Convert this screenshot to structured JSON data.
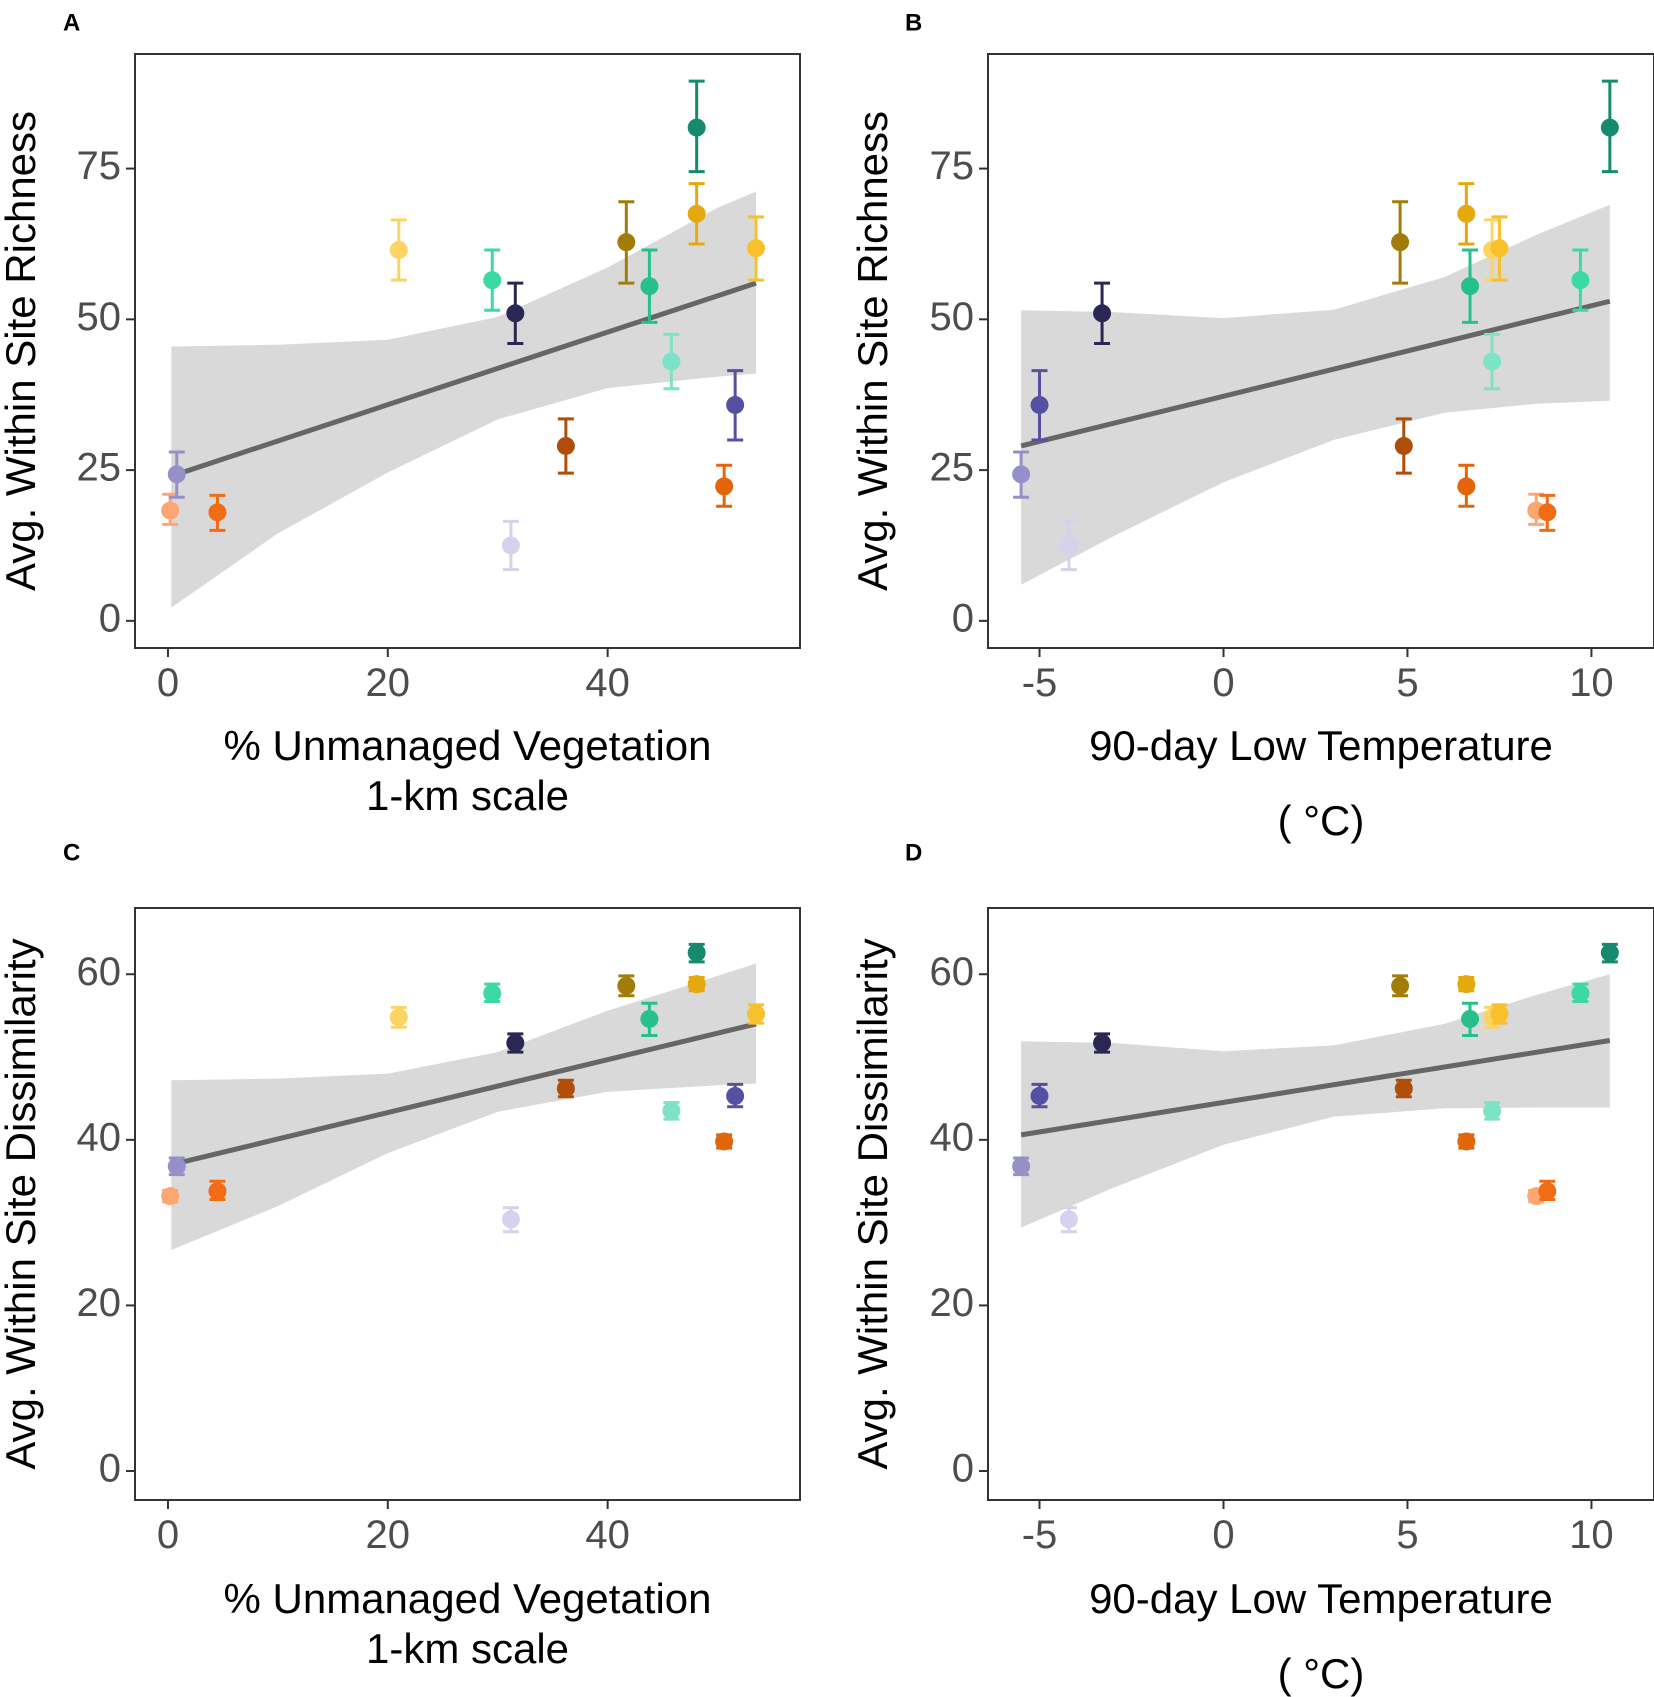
{
  "chart_data": [
    {
      "panel": "A",
      "type": "scatter",
      "xlabel_lines": [
        "% Unmanaged Vegetation",
        "1-km scale"
      ],
      "ylabel": "Avg. Within Site Richness",
      "xlim": [
        -3,
        57.5
      ],
      "ylim": [
        -4.5,
        94
      ],
      "xticks": [
        0,
        20,
        40
      ],
      "xtick_labels": [
        "0",
        "20",
        "40"
      ],
      "yticks": [
        0,
        25,
        50,
        75
      ],
      "ytick_labels": [
        "0",
        "25",
        "50",
        "75"
      ],
      "fit": {
        "x": [
          0.3,
          53.5
        ],
        "y": [
          24.0,
          56.0
        ]
      },
      "band": {
        "x": [
          0.3,
          10,
          20,
          30,
          40,
          50,
          53.5
        ],
        "upper": [
          45.5,
          45.8,
          46.6,
          50.4,
          58.6,
          68.5,
          71.2
        ],
        "lower": [
          2.2,
          14.5,
          24.6,
          33.4,
          38.6,
          40.5,
          41.0
        ]
      },
      "points": [
        {
          "x": 0.2,
          "y": 18.3,
          "lo": 16.0,
          "hi": 21.0,
          "color": "#fca771"
        },
        {
          "x": 0.8,
          "y": 24.3,
          "lo": 20.5,
          "hi": 28.0,
          "color": "#9590c8"
        },
        {
          "x": 4.5,
          "y": 18.0,
          "lo": 15.0,
          "hi": 20.8,
          "color": "#f26b15"
        },
        {
          "x": 21.0,
          "y": 61.5,
          "lo": 56.5,
          "hi": 66.5,
          "color": "#fdd463"
        },
        {
          "x": 29.5,
          "y": 56.5,
          "lo": 51.5,
          "hi": 61.5,
          "color": "#3dd9a3"
        },
        {
          "x": 31.2,
          "y": 12.5,
          "lo": 8.5,
          "hi": 16.5,
          "color": "#d4d2ec"
        },
        {
          "x": 31.6,
          "y": 51.0,
          "lo": 46.0,
          "hi": 56.0,
          "color": "#2a2752"
        },
        {
          "x": 36.2,
          "y": 29.0,
          "lo": 24.5,
          "hi": 33.5,
          "color": "#b04e09"
        },
        {
          "x": 41.7,
          "y": 62.8,
          "lo": 56.0,
          "hi": 69.5,
          "color": "#a27c08"
        },
        {
          "x": 43.8,
          "y": 55.5,
          "lo": 49.5,
          "hi": 61.5,
          "color": "#27c08b"
        },
        {
          "x": 45.8,
          "y": 43.0,
          "lo": 38.5,
          "hi": 47.5,
          "color": "#7de3c6"
        },
        {
          "x": 48.1,
          "y": 81.8,
          "lo": 74.5,
          "hi": 89.5,
          "color": "#168a6c"
        },
        {
          "x": 48.1,
          "y": 67.5,
          "lo": 62.5,
          "hi": 72.5,
          "color": "#e5a90d"
        },
        {
          "x": 50.6,
          "y": 22.3,
          "lo": 19.0,
          "hi": 25.8,
          "color": "#e2650a"
        },
        {
          "x": 51.6,
          "y": 35.8,
          "lo": 30.0,
          "hi": 41.5,
          "color": "#5550a2"
        },
        {
          "x": 53.5,
          "y": 61.8,
          "lo": 56.5,
          "hi": 67.0,
          "color": "#f8c02a"
        }
      ]
    },
    {
      "panel": "B",
      "type": "scatter",
      "xlabel_lines": [
        "90-day Low Temperature",
        "( °C)"
      ],
      "ylabel": "Avg. Within Site Richness",
      "xlim": [
        -6.4,
        11.7
      ],
      "ylim": [
        -4.5,
        94
      ],
      "xticks": [
        -5,
        0,
        5,
        10
      ],
      "xtick_labels": [
        "-5",
        "0",
        "5",
        "10"
      ],
      "yticks": [
        0,
        25,
        50,
        75
      ],
      "ytick_labels": [
        "0",
        "25",
        "50",
        "75"
      ],
      "fit": {
        "x": [
          -5.5,
          10.5
        ],
        "y": [
          29.0,
          53.0
        ]
      },
      "band": {
        "x": [
          -5.5,
          -3,
          0,
          3,
          6,
          8.5,
          10.5
        ],
        "upper": [
          51.5,
          51.2,
          50.2,
          51.6,
          57.0,
          64.0,
          69.0
        ],
        "lower": [
          6.0,
          14.0,
          23.0,
          30.0,
          34.5,
          36.0,
          36.5
        ]
      },
      "points": [
        {
          "x": -5.5,
          "y": 24.3,
          "lo": 20.5,
          "hi": 28.0,
          "color": "#9590c8"
        },
        {
          "x": -5.0,
          "y": 35.8,
          "lo": 30.0,
          "hi": 41.5,
          "color": "#5550a2"
        },
        {
          "x": -4.2,
          "y": 12.5,
          "lo": 8.5,
          "hi": 16.5,
          "color": "#d4d2ec"
        },
        {
          "x": -3.3,
          "y": 51.0,
          "lo": 46.0,
          "hi": 56.0,
          "color": "#2a2752"
        },
        {
          "x": 4.8,
          "y": 62.8,
          "lo": 56.0,
          "hi": 69.5,
          "color": "#a27c08"
        },
        {
          "x": 4.9,
          "y": 29.0,
          "lo": 24.5,
          "hi": 33.5,
          "color": "#b04e09"
        },
        {
          "x": 6.6,
          "y": 67.5,
          "lo": 62.5,
          "hi": 72.5,
          "color": "#e5a90d"
        },
        {
          "x": 6.6,
          "y": 22.3,
          "lo": 19.0,
          "hi": 25.8,
          "color": "#e2650a"
        },
        {
          "x": 6.7,
          "y": 55.5,
          "lo": 49.5,
          "hi": 61.5,
          "color": "#27c08b"
        },
        {
          "x": 7.3,
          "y": 61.5,
          "lo": 56.5,
          "hi": 66.5,
          "color": "#fdd463"
        },
        {
          "x": 7.3,
          "y": 43.0,
          "lo": 38.5,
          "hi": 47.5,
          "color": "#7de3c6"
        },
        {
          "x": 7.5,
          "y": 61.8,
          "lo": 56.5,
          "hi": 67.0,
          "color": "#f8c02a"
        },
        {
          "x": 8.5,
          "y": 18.3,
          "lo": 16.0,
          "hi": 21.0,
          "color": "#fca771"
        },
        {
          "x": 8.8,
          "y": 18.0,
          "lo": 15.0,
          "hi": 20.8,
          "color": "#f26b15"
        },
        {
          "x": 9.7,
          "y": 56.5,
          "lo": 51.5,
          "hi": 61.5,
          "color": "#3dd9a3"
        },
        {
          "x": 10.5,
          "y": 81.8,
          "lo": 74.5,
          "hi": 89.5,
          "color": "#168a6c"
        }
      ]
    },
    {
      "panel": "C",
      "type": "scatter",
      "xlabel_lines": [
        "% Unmanaged Vegetation",
        "1-km scale"
      ],
      "ylabel": "Avg. Within Site Dissimilarity",
      "xlim": [
        -3,
        57.5
      ],
      "ylim": [
        -3.5,
        68
      ],
      "xticks": [
        0,
        20,
        40
      ],
      "xtick_labels": [
        "0",
        "20",
        "40"
      ],
      "yticks": [
        0,
        20,
        40,
        60
      ],
      "ytick_labels": [
        "0",
        "20",
        "40",
        "60"
      ],
      "fit": {
        "x": [
          0.3,
          53.5
        ],
        "y": [
          37.0,
          54.0
        ]
      },
      "band": {
        "x": [
          0.3,
          10,
          20,
          30,
          40,
          50,
          53.5
        ],
        "upper": [
          47.2,
          47.4,
          48.0,
          50.6,
          55.6,
          59.8,
          61.3
        ],
        "lower": [
          26.7,
          32.0,
          38.4,
          43.4,
          45.8,
          46.6,
          46.8
        ]
      },
      "points": [
        {
          "x": 0.2,
          "y": 33.2,
          "lo": 32.5,
          "hi": 33.9,
          "color": "#fca771"
        },
        {
          "x": 0.8,
          "y": 36.8,
          "lo": 35.8,
          "hi": 37.8,
          "color": "#9590c8"
        },
        {
          "x": 4.5,
          "y": 33.8,
          "lo": 32.8,
          "hi": 35.0,
          "color": "#f26b15"
        },
        {
          "x": 21.0,
          "y": 54.8,
          "lo": 53.6,
          "hi": 56.0,
          "color": "#fdd463"
        },
        {
          "x": 29.5,
          "y": 57.7,
          "lo": 56.7,
          "hi": 58.8,
          "color": "#3dd9a3"
        },
        {
          "x": 31.2,
          "y": 30.4,
          "lo": 28.9,
          "hi": 31.8,
          "color": "#d4d2ec"
        },
        {
          "x": 31.6,
          "y": 51.7,
          "lo": 50.6,
          "hi": 52.8,
          "color": "#2a2752"
        },
        {
          "x": 36.2,
          "y": 46.2,
          "lo": 45.2,
          "hi": 47.2,
          "color": "#b04e09"
        },
        {
          "x": 41.7,
          "y": 58.6,
          "lo": 57.4,
          "hi": 59.8,
          "color": "#a27c08"
        },
        {
          "x": 43.8,
          "y": 54.6,
          "lo": 52.6,
          "hi": 56.5,
          "color": "#27c08b"
        },
        {
          "x": 45.8,
          "y": 43.5,
          "lo": 42.5,
          "hi": 44.5,
          "color": "#7de3c6"
        },
        {
          "x": 48.1,
          "y": 62.6,
          "lo": 61.5,
          "hi": 63.6,
          "color": "#168a6c"
        },
        {
          "x": 48.1,
          "y": 58.8,
          "lo": 58.0,
          "hi": 59.6,
          "color": "#e5a90d"
        },
        {
          "x": 50.6,
          "y": 39.8,
          "lo": 39.0,
          "hi": 40.6,
          "color": "#e2650a"
        },
        {
          "x": 51.6,
          "y": 45.3,
          "lo": 44.0,
          "hi": 46.7,
          "color": "#5550a2"
        },
        {
          "x": 53.5,
          "y": 55.2,
          "lo": 54.1,
          "hi": 56.3,
          "color": "#f8c02a"
        }
      ]
    },
    {
      "panel": "D",
      "type": "scatter",
      "xlabel_lines": [
        "90-day Low Temperature",
        "( °C)"
      ],
      "ylabel": "Avg. Within Site Dissimilarity",
      "xlim": [
        -6.4,
        11.7
      ],
      "ylim": [
        -3.5,
        68
      ],
      "xticks": [
        -5,
        0,
        5,
        10
      ],
      "xtick_labels": [
        "-5",
        "0",
        "5",
        "10"
      ],
      "yticks": [
        0,
        20,
        40,
        60
      ],
      "ytick_labels": [
        "0",
        "20",
        "40",
        "60"
      ],
      "fit": {
        "x": [
          -5.5,
          10.5
        ],
        "y": [
          40.6,
          52.0
        ]
      },
      "band": {
        "x": [
          -5.5,
          -3,
          0,
          3,
          6,
          8.5,
          10.5
        ],
        "upper": [
          51.9,
          51.7,
          50.7,
          51.4,
          54.0,
          57.5,
          60.0
        ],
        "lower": [
          29.4,
          34.2,
          39.4,
          42.8,
          43.8,
          43.9,
          43.9
        ]
      },
      "points": [
        {
          "x": -5.5,
          "y": 36.8,
          "lo": 35.8,
          "hi": 37.8,
          "color": "#9590c8"
        },
        {
          "x": -5.0,
          "y": 45.3,
          "lo": 44.0,
          "hi": 46.7,
          "color": "#5550a2"
        },
        {
          "x": -4.2,
          "y": 30.4,
          "lo": 28.9,
          "hi": 31.8,
          "color": "#d4d2ec"
        },
        {
          "x": -3.3,
          "y": 51.7,
          "lo": 50.6,
          "hi": 52.8,
          "color": "#2a2752"
        },
        {
          "x": 4.8,
          "y": 58.6,
          "lo": 57.4,
          "hi": 59.8,
          "color": "#a27c08"
        },
        {
          "x": 4.9,
          "y": 46.2,
          "lo": 45.2,
          "hi": 47.2,
          "color": "#b04e09"
        },
        {
          "x": 6.6,
          "y": 58.8,
          "lo": 58.0,
          "hi": 59.6,
          "color": "#e5a90d"
        },
        {
          "x": 6.6,
          "y": 39.8,
          "lo": 39.0,
          "hi": 40.6,
          "color": "#e2650a"
        },
        {
          "x": 6.7,
          "y": 54.6,
          "lo": 52.6,
          "hi": 56.5,
          "color": "#27c08b"
        },
        {
          "x": 7.3,
          "y": 54.8,
          "lo": 53.6,
          "hi": 56.0,
          "color": "#fdd463"
        },
        {
          "x": 7.3,
          "y": 43.5,
          "lo": 42.5,
          "hi": 44.5,
          "color": "#7de3c6"
        },
        {
          "x": 7.5,
          "y": 55.2,
          "lo": 54.1,
          "hi": 56.3,
          "color": "#f8c02a"
        },
        {
          "x": 8.5,
          "y": 33.2,
          "lo": 32.5,
          "hi": 33.9,
          "color": "#fca771"
        },
        {
          "x": 8.8,
          "y": 33.8,
          "lo": 32.8,
          "hi": 35.0,
          "color": "#f26b15"
        },
        {
          "x": 9.7,
          "y": 57.7,
          "lo": 56.7,
          "hi": 58.8,
          "color": "#3dd9a3"
        },
        {
          "x": 10.5,
          "y": 62.6,
          "lo": 61.5,
          "hi": 63.6,
          "color": "#168a6c"
        }
      ]
    }
  ]
}
